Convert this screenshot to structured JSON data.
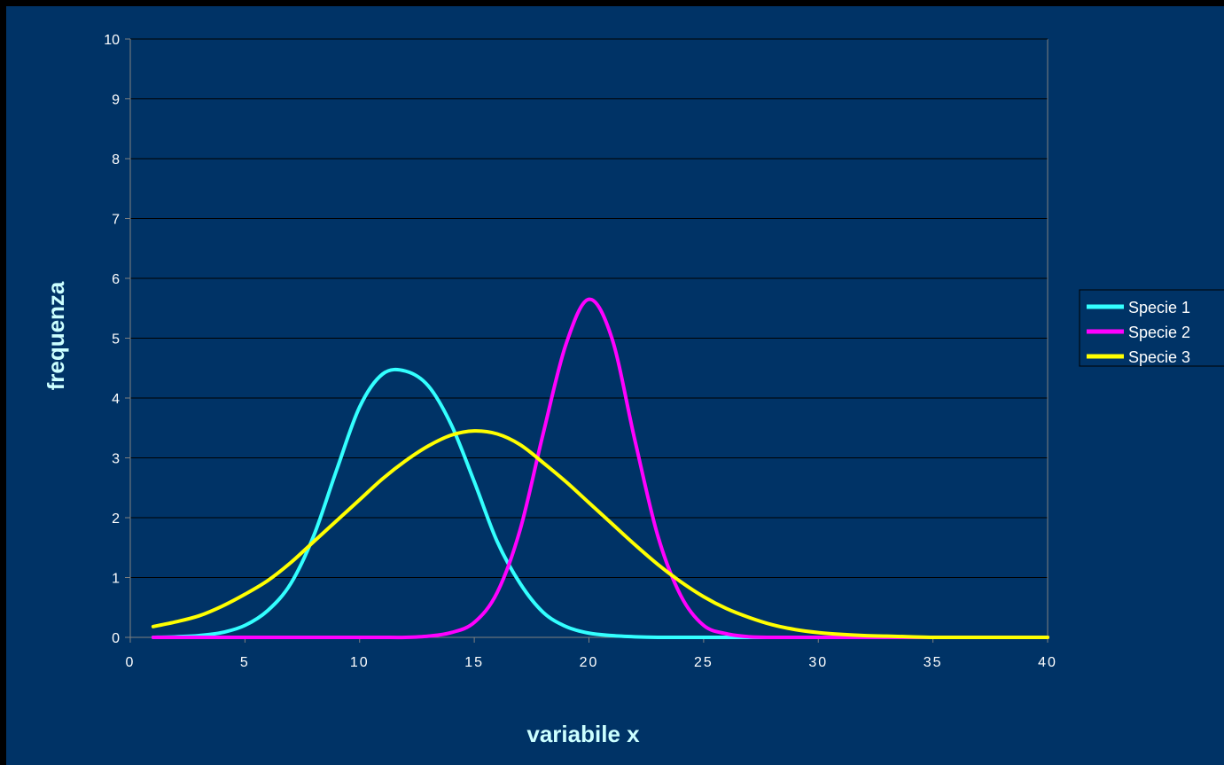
{
  "colors": {
    "background": "#003366",
    "grid": "#000000",
    "axis": "#808080",
    "axis_title": "#ccffff",
    "text": "#ffffff"
  },
  "chart_data": {
    "type": "line",
    "xlabel": "variabile x",
    "ylabel": "frequenza",
    "xlim": [
      0,
      40
    ],
    "ylim": [
      0,
      10
    ],
    "x_ticks": [
      "0",
      "5",
      "10",
      "15",
      "20",
      "25",
      "30",
      "35",
      "40"
    ],
    "y_ticks": [
      "0",
      "1",
      "2",
      "3",
      "4",
      "5",
      "6",
      "7",
      "8",
      "9",
      "10"
    ],
    "grid": "horizontal",
    "legend": "right",
    "series": [
      {
        "name": "Specie 1",
        "color": "#33ffff",
        "x": [
          1,
          2,
          3,
          4,
          5,
          6,
          7,
          8,
          9,
          10,
          11,
          12,
          13,
          14,
          15,
          16,
          17,
          18,
          19,
          20,
          21,
          22,
          23,
          24,
          25,
          26,
          27,
          28,
          29,
          30,
          31,
          32,
          33,
          34,
          35,
          36,
          37,
          38,
          39,
          40
        ],
        "y": [
          0.0,
          0.01,
          0.03,
          0.08,
          0.2,
          0.45,
          0.9,
          1.7,
          2.8,
          3.85,
          4.4,
          4.45,
          4.2,
          3.55,
          2.6,
          1.6,
          0.9,
          0.42,
          0.18,
          0.07,
          0.03,
          0.01,
          0.0,
          0.0,
          0.0,
          0.0,
          0.0,
          0.0,
          0.0,
          0.0,
          0.0,
          0.0,
          0.0,
          0.0,
          0.0,
          0.0,
          0.0,
          0.0,
          0.0,
          0.0
        ]
      },
      {
        "name": "Specie 2",
        "color": "#ff00ff",
        "x": [
          1,
          2,
          3,
          4,
          5,
          6,
          7,
          8,
          9,
          10,
          11,
          12,
          13,
          14,
          15,
          16,
          17,
          18,
          19,
          20,
          21,
          22,
          23,
          24,
          25,
          26,
          27,
          28,
          29,
          30,
          31,
          32,
          33,
          34,
          35,
          36,
          37,
          38,
          39,
          40
        ],
        "y": [
          0.0,
          0.0,
          0.0,
          0.0,
          0.0,
          0.0,
          0.0,
          0.0,
          0.0,
          0.0,
          0.0,
          0.0,
          0.02,
          0.08,
          0.25,
          0.75,
          1.8,
          3.4,
          4.9,
          5.65,
          5.0,
          3.3,
          1.7,
          0.7,
          0.2,
          0.06,
          0.01,
          0.0,
          0.0,
          0.0,
          0.0,
          0.0,
          0.0,
          0.0,
          0.0,
          0.0,
          0.0,
          0.0,
          0.0,
          0.0
        ]
      },
      {
        "name": "Specie 3",
        "color": "#ffff00",
        "x": [
          1,
          2,
          3,
          4,
          5,
          6,
          7,
          8,
          9,
          10,
          11,
          12,
          13,
          14,
          15,
          16,
          17,
          18,
          19,
          20,
          21,
          22,
          23,
          24,
          25,
          26,
          27,
          28,
          29,
          30,
          31,
          32,
          33,
          34,
          35,
          36,
          37,
          38,
          39,
          40
        ],
        "y": [
          0.18,
          0.26,
          0.36,
          0.52,
          0.72,
          0.95,
          1.25,
          1.6,
          1.95,
          2.3,
          2.65,
          2.95,
          3.2,
          3.38,
          3.45,
          3.4,
          3.22,
          2.92,
          2.6,
          2.25,
          1.9,
          1.55,
          1.22,
          0.93,
          0.68,
          0.48,
          0.33,
          0.21,
          0.13,
          0.08,
          0.05,
          0.03,
          0.02,
          0.01,
          0.0,
          0.0,
          0.0,
          0.0,
          0.0,
          0.0
        ]
      }
    ]
  }
}
